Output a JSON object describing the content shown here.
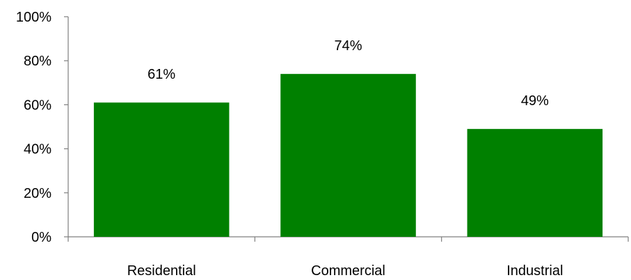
{
  "chart_data": {
    "type": "bar",
    "categories": [
      "Residential",
      "Commercial",
      "Industrial"
    ],
    "values": [
      61,
      74,
      49
    ],
    "data_labels": [
      "61%",
      "74%",
      "49%"
    ],
    "ylim": [
      0,
      100
    ],
    "yticks": [
      0,
      20,
      40,
      60,
      80,
      100
    ],
    "ytick_labels": [
      "0%",
      "20%",
      "40%",
      "60%",
      "80%",
      "100%"
    ],
    "title": "",
    "xlabel": "",
    "ylabel": "",
    "grid": false,
    "legend": "none",
    "bar_color": "#008000",
    "axis_color": "#7f7f7f"
  }
}
